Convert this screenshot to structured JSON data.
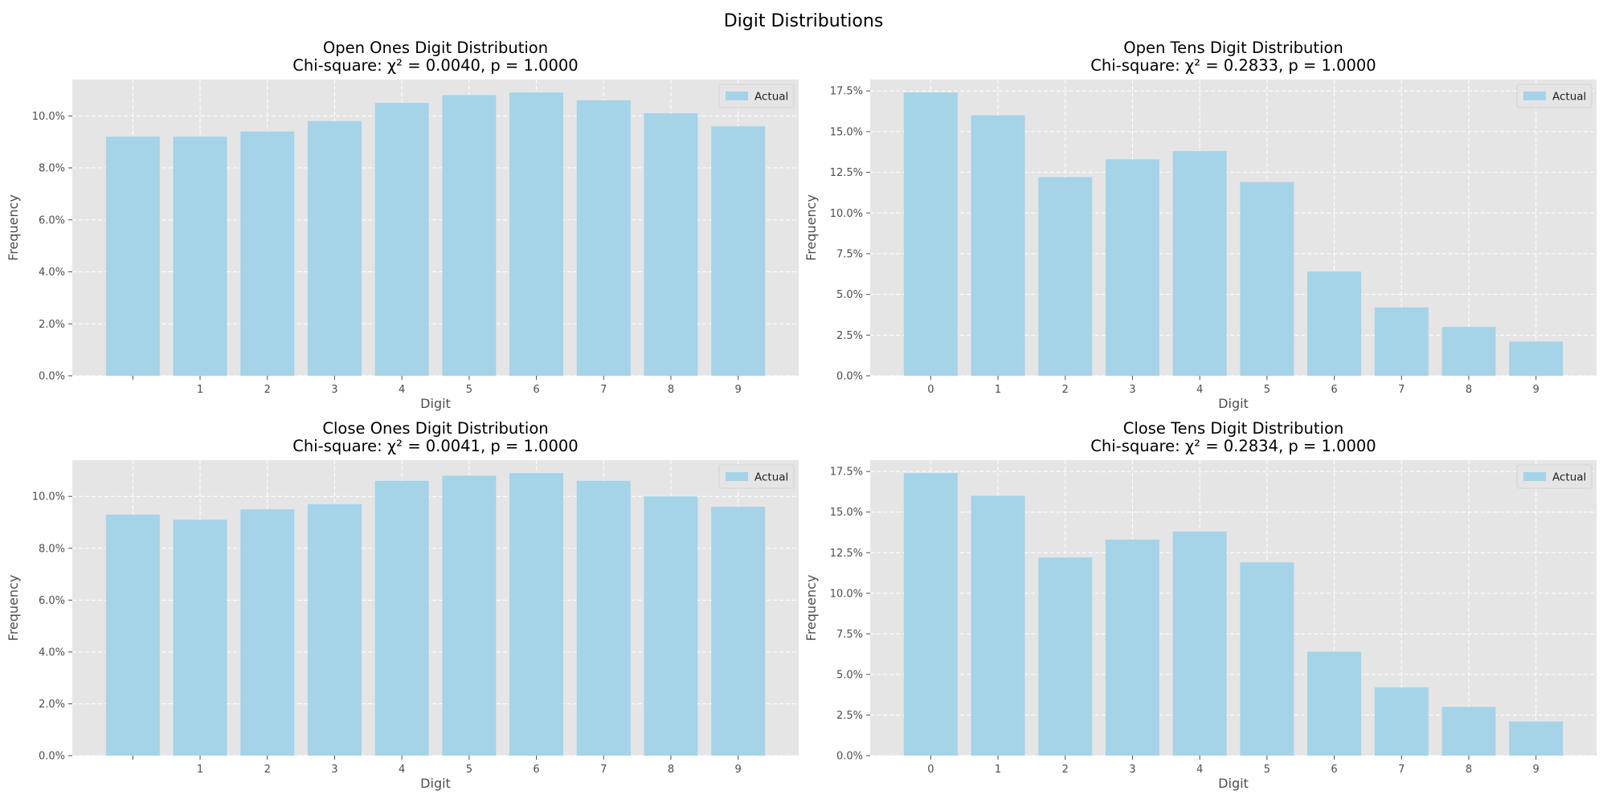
{
  "figure": {
    "title": "Digit Distributions"
  },
  "style": {
    "panel_bg": "#e5e5e5",
    "grid": "#ffffff",
    "bar": "#a5d3e8",
    "tick_color": "#4d4d4d"
  },
  "chart_data": [
    {
      "id": "open-ones",
      "type": "bar",
      "title": "Open Ones Digit Distribution",
      "subtitle": "Chi-square: χ² = 0.0040, p = 1.0000",
      "xlabel": "Digit",
      "ylabel": "Frequency",
      "categories": [
        "0",
        "1",
        "2",
        "3",
        "4",
        "5",
        "6",
        "7",
        "8",
        "9"
      ],
      "category_labels": [
        "",
        "1",
        "2",
        "3",
        "4",
        "5",
        "6",
        "7",
        "8",
        "9"
      ],
      "series": [
        {
          "name": "Actual",
          "values": [
            9.2,
            9.2,
            9.4,
            9.8,
            10.5,
            10.8,
            10.9,
            10.6,
            10.1,
            9.6
          ]
        }
      ],
      "ylim": [
        0,
        11.4
      ],
      "yticks": [
        0,
        2,
        4,
        6,
        8,
        10
      ],
      "ytick_labels": [
        "0.0%",
        "2.0%",
        "4.0%",
        "6.0%",
        "8.0%",
        "10.0%"
      ],
      "grid": true,
      "legend": "top-right"
    },
    {
      "id": "open-tens",
      "type": "bar",
      "title": "Open Tens Digit Distribution",
      "subtitle": "Chi-square: χ² = 0.2833, p = 1.0000",
      "xlabel": "Digit",
      "ylabel": "Frequency",
      "categories": [
        "0",
        "1",
        "2",
        "3",
        "4",
        "5",
        "6",
        "7",
        "8",
        "9"
      ],
      "category_labels": [
        "0",
        "1",
        "2",
        "3",
        "4",
        "5",
        "6",
        "7",
        "8",
        "9"
      ],
      "series": [
        {
          "name": "Actual",
          "values": [
            17.4,
            16.0,
            12.2,
            13.3,
            13.8,
            11.9,
            6.4,
            4.2,
            3.0,
            2.1
          ]
        }
      ],
      "ylim": [
        0,
        18.2
      ],
      "yticks": [
        0,
        2.5,
        5,
        7.5,
        10,
        12.5,
        15,
        17.5
      ],
      "ytick_labels": [
        "0.0%",
        "2.5%",
        "5.0%",
        "7.5%",
        "10.0%",
        "12.5%",
        "15.0%",
        "17.5%"
      ],
      "grid": true,
      "legend": "top-right"
    },
    {
      "id": "close-ones",
      "type": "bar",
      "title": "Close Ones Digit Distribution",
      "subtitle": "Chi-square: χ² = 0.0041, p = 1.0000",
      "xlabel": "Digit",
      "ylabel": "Frequency",
      "categories": [
        "0",
        "1",
        "2",
        "3",
        "4",
        "5",
        "6",
        "7",
        "8",
        "9"
      ],
      "category_labels": [
        "",
        "1",
        "2",
        "3",
        "4",
        "5",
        "6",
        "7",
        "8",
        "9"
      ],
      "series": [
        {
          "name": "Actual",
          "values": [
            9.3,
            9.1,
            9.5,
            9.7,
            10.6,
            10.8,
            10.9,
            10.6,
            10.0,
            9.6
          ]
        }
      ],
      "ylim": [
        0,
        11.4
      ],
      "yticks": [
        0,
        2,
        4,
        6,
        8,
        10
      ],
      "ytick_labels": [
        "0.0%",
        "2.0%",
        "4.0%",
        "6.0%",
        "8.0%",
        "10.0%"
      ],
      "grid": true,
      "legend": "top-right"
    },
    {
      "id": "close-tens",
      "type": "bar",
      "title": "Close Tens Digit Distribution",
      "subtitle": "Chi-square: χ² = 0.2834, p = 1.0000",
      "xlabel": "Digit",
      "ylabel": "Frequency",
      "categories": [
        "0",
        "1",
        "2",
        "3",
        "4",
        "5",
        "6",
        "7",
        "8",
        "9"
      ],
      "category_labels": [
        "0",
        "1",
        "2",
        "3",
        "4",
        "5",
        "6",
        "7",
        "8",
        "9"
      ],
      "series": [
        {
          "name": "Actual",
          "values": [
            17.4,
            16.0,
            12.2,
            13.3,
            13.8,
            11.9,
            6.4,
            4.2,
            3.0,
            2.1
          ]
        }
      ],
      "ylim": [
        0,
        18.2
      ],
      "yticks": [
        0,
        2.5,
        5,
        7.5,
        10,
        12.5,
        15,
        17.5
      ],
      "ytick_labels": [
        "0.0%",
        "2.5%",
        "5.0%",
        "7.5%",
        "10.0%",
        "12.5%",
        "15.0%",
        "17.5%"
      ],
      "grid": true,
      "legend": "top-right"
    }
  ]
}
